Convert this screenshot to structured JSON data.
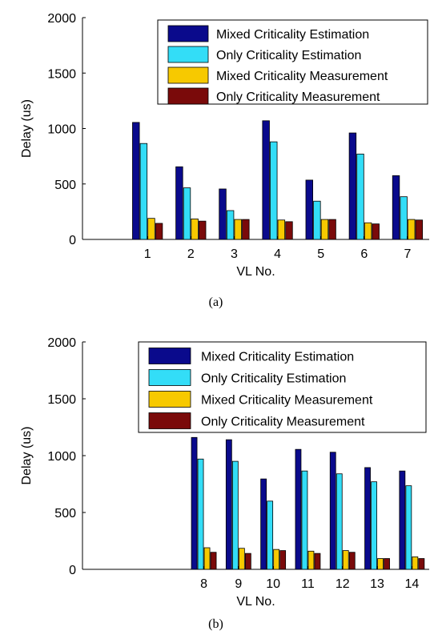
{
  "chart_data": [
    {
      "type": "bar",
      "caption": "(a)",
      "xlabel": "VL No.",
      "ylabel": "Delay (us)",
      "ylim": [
        0,
        2000
      ],
      "yticks": [
        0,
        500,
        1000,
        1500,
        2000
      ],
      "categories": [
        "1",
        "2",
        "3",
        "4",
        "5",
        "6",
        "7"
      ],
      "legend_position": "top-right",
      "series": [
        {
          "name": "Mixed Criticality Estimation",
          "color": "#0a0a8c",
          "values": [
            1055,
            655,
            455,
            1070,
            535,
            960,
            575
          ]
        },
        {
          "name": "Only Criticality Estimation",
          "color": "#33ddf7",
          "values": [
            865,
            465,
            260,
            880,
            345,
            770,
            385
          ]
        },
        {
          "name": "Mixed Criticality Measurement",
          "color": "#f7c900",
          "values": [
            190,
            185,
            180,
            175,
            180,
            150,
            180
          ]
        },
        {
          "name": "Only Criticality Measurement",
          "color": "#7a0a0a",
          "values": [
            145,
            165,
            180,
            160,
            180,
            140,
            175
          ]
        }
      ]
    },
    {
      "type": "bar",
      "caption": "(b)",
      "xlabel": "VL No.",
      "ylabel": "Delay (us)",
      "ylim": [
        0,
        2000
      ],
      "yticks": [
        0,
        500,
        1000,
        1500,
        2000
      ],
      "categories": [
        "8",
        "9",
        "10",
        "11",
        "12",
        "13",
        "14"
      ],
      "legend_position": "top-right",
      "series": [
        {
          "name": "Mixed Criticality Estimation",
          "color": "#0a0a8c",
          "values": [
            1160,
            1140,
            795,
            1055,
            1030,
            895,
            865
          ]
        },
        {
          "name": "Only Criticality Estimation",
          "color": "#33ddf7",
          "values": [
            970,
            950,
            600,
            865,
            840,
            770,
            735
          ]
        },
        {
          "name": "Mixed Criticality Measurement",
          "color": "#f7c900",
          "values": [
            190,
            185,
            175,
            160,
            165,
            95,
            110
          ]
        },
        {
          "name": "Only Criticality Measurement",
          "color": "#7a0a0a",
          "values": [
            150,
            140,
            165,
            140,
            150,
            95,
            95
          ]
        }
      ]
    }
  ]
}
